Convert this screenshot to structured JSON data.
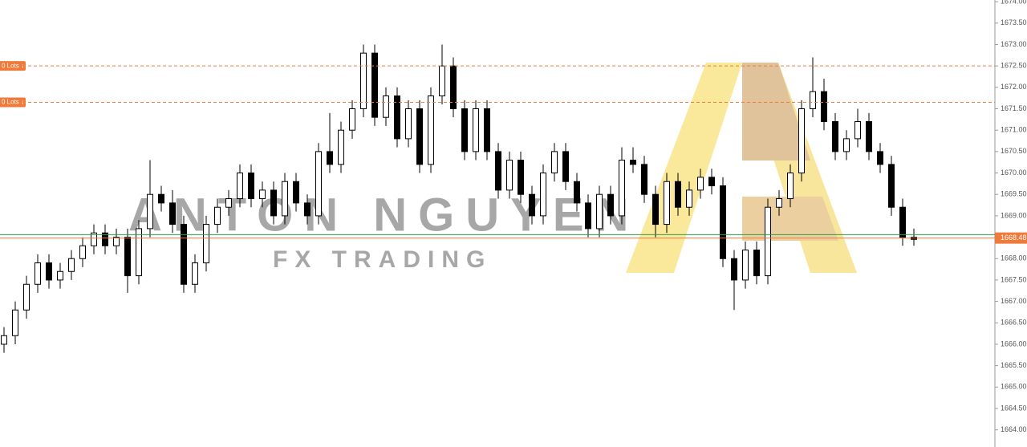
{
  "chart_data": {
    "type": "candlestick",
    "watermark": {
      "title": "ANTON NGUYEN",
      "subtitle": "FX TRADING"
    },
    "ylim": [
      1663.6,
      1674.04
    ],
    "yticks": [
      {
        "value": 1664,
        "label": "1664.00"
      },
      {
        "value": 1664.5,
        "label": "1664.50"
      },
      {
        "value": 1665,
        "label": "1665.00"
      },
      {
        "value": 1665.5,
        "label": "1665.50"
      },
      {
        "value": 1666,
        "label": "1666.00"
      },
      {
        "value": 1666.5,
        "label": "1666.50"
      },
      {
        "value": 1667,
        "label": "1667.00"
      },
      {
        "value": 1667.5,
        "label": "1667.50"
      },
      {
        "value": 1668,
        "label": "1668.00"
      },
      {
        "value": 1668.5,
        "label": "1668.50"
      },
      {
        "value": 1669,
        "label": "1669.00"
      },
      {
        "value": 1669.5,
        "label": "1669.50"
      },
      {
        "value": 1670,
        "label": "1670.00"
      },
      {
        "value": 1670.5,
        "label": "1670.50"
      },
      {
        "value": 1671,
        "label": "1671.00"
      },
      {
        "value": 1671.5,
        "label": "1671.50"
      },
      {
        "value": 1672,
        "label": "1672.00"
      },
      {
        "value": 1672.5,
        "label": "1672.50"
      },
      {
        "value": 1673,
        "label": "1673.00"
      },
      {
        "value": 1673.5,
        "label": "1673.50"
      },
      {
        "value": 1674,
        "label": "1674.00"
      }
    ],
    "up_color": "#ffffff",
    "down_color": "#000000",
    "levels": [
      {
        "value": 1672.5,
        "color": "#f07a3a",
        "dashed": true,
        "label": "0 Lots ↓"
      },
      {
        "value": 1671.65,
        "color": "#f07a3a",
        "dashed": true,
        "label": "0 Lots ↓"
      },
      {
        "value": 1668.56,
        "color": "#2e9e4a",
        "dashed": false
      },
      {
        "value": 1668.48,
        "color": "#f07a3a",
        "dashed": false,
        "label": "1668.48"
      }
    ],
    "ohlc": [
      [
        1666.0,
        1666.4,
        1665.8,
        1666.2
      ],
      [
        1666.2,
        1667.0,
        1666.0,
        1666.8
      ],
      [
        1666.8,
        1667.6,
        1666.6,
        1667.4
      ],
      [
        1667.4,
        1668.1,
        1667.2,
        1667.9
      ],
      [
        1667.9,
        1668.1,
        1667.3,
        1667.5
      ],
      [
        1667.5,
        1667.9,
        1667.3,
        1667.7
      ],
      [
        1667.7,
        1668.2,
        1667.5,
        1668.0
      ],
      [
        1668.0,
        1668.5,
        1667.8,
        1668.3
      ],
      [
        1668.3,
        1668.8,
        1668.1,
        1668.6
      ],
      [
        1668.6,
        1668.8,
        1668.1,
        1668.3
      ],
      [
        1668.3,
        1668.7,
        1668.1,
        1668.5
      ],
      [
        1668.5,
        1668.7,
        1667.2,
        1667.6
      ],
      [
        1667.6,
        1668.9,
        1667.4,
        1668.7
      ],
      [
        1668.7,
        1670.3,
        1668.5,
        1669.5
      ],
      [
        1669.5,
        1669.7,
        1669.1,
        1669.3
      ],
      [
        1669.3,
        1669.6,
        1668.6,
        1668.8
      ],
      [
        1668.8,
        1669.0,
        1667.2,
        1667.4
      ],
      [
        1667.4,
        1668.1,
        1667.2,
        1667.9
      ],
      [
        1667.9,
        1669.0,
        1667.7,
        1668.8
      ],
      [
        1668.8,
        1669.4,
        1668.6,
        1669.2
      ],
      [
        1669.2,
        1669.6,
        1669.0,
        1669.4
      ],
      [
        1669.4,
        1670.2,
        1669.2,
        1670.0
      ],
      [
        1670.0,
        1670.2,
        1669.2,
        1669.4
      ],
      [
        1669.4,
        1669.8,
        1669.2,
        1669.6
      ],
      [
        1669.6,
        1669.8,
        1668.8,
        1669.0
      ],
      [
        1669.0,
        1670.0,
        1668.8,
        1669.8
      ],
      [
        1669.8,
        1670.0,
        1669.1,
        1669.3
      ],
      [
        1669.3,
        1669.5,
        1668.8,
        1669.0
      ],
      [
        1669.0,
        1670.7,
        1668.8,
        1670.5
      ],
      [
        1670.5,
        1671.4,
        1670.0,
        1670.2
      ],
      [
        1670.2,
        1671.2,
        1670.0,
        1671.0
      ],
      [
        1671.0,
        1671.7,
        1670.8,
        1671.5
      ],
      [
        1671.5,
        1673.0,
        1671.3,
        1672.8
      ],
      [
        1672.8,
        1673.0,
        1671.1,
        1671.3
      ],
      [
        1671.3,
        1672.0,
        1671.1,
        1671.8
      ],
      [
        1671.8,
        1672.0,
        1670.6,
        1670.8
      ],
      [
        1670.8,
        1671.7,
        1670.6,
        1671.5
      ],
      [
        1671.5,
        1671.7,
        1670.0,
        1670.2
      ],
      [
        1670.2,
        1672.0,
        1670.0,
        1671.8
      ],
      [
        1671.8,
        1673.0,
        1671.6,
        1672.5
      ],
      [
        1672.5,
        1672.7,
        1671.3,
        1671.5
      ],
      [
        1671.5,
        1671.7,
        1670.3,
        1670.5
      ],
      [
        1670.5,
        1671.7,
        1670.3,
        1671.5
      ],
      [
        1671.5,
        1671.7,
        1670.3,
        1670.5
      ],
      [
        1670.5,
        1670.7,
        1669.4,
        1669.6
      ],
      [
        1669.6,
        1670.5,
        1669.4,
        1670.3
      ],
      [
        1670.3,
        1670.5,
        1669.3,
        1669.5
      ],
      [
        1669.5,
        1669.7,
        1668.8,
        1669.0
      ],
      [
        1669.0,
        1670.2,
        1668.8,
        1670.0
      ],
      [
        1670.0,
        1670.7,
        1669.8,
        1670.5
      ],
      [
        1670.5,
        1670.7,
        1669.6,
        1669.8
      ],
      [
        1669.8,
        1670.0,
        1669.1,
        1669.3
      ],
      [
        1669.3,
        1669.5,
        1668.5,
        1668.7
      ],
      [
        1668.7,
        1669.7,
        1668.5,
        1669.5
      ],
      [
        1669.5,
        1669.7,
        1668.8,
        1669.0
      ],
      [
        1669.0,
        1670.6,
        1668.8,
        1670.3
      ],
      [
        1670.3,
        1670.6,
        1670.0,
        1670.2
      ],
      [
        1670.2,
        1670.4,
        1669.3,
        1669.5
      ],
      [
        1669.5,
        1669.7,
        1668.5,
        1668.8
      ],
      [
        1668.8,
        1670.0,
        1668.6,
        1669.8
      ],
      [
        1669.8,
        1670.0,
        1669.0,
        1669.2
      ],
      [
        1669.2,
        1669.8,
        1669.0,
        1669.6
      ],
      [
        1669.6,
        1670.1,
        1669.4,
        1669.9
      ],
      [
        1669.9,
        1670.1,
        1669.5,
        1669.7
      ],
      [
        1669.7,
        1669.9,
        1667.8,
        1668.0
      ],
      [
        1668.0,
        1668.2,
        1666.8,
        1667.5
      ],
      [
        1667.5,
        1668.4,
        1667.3,
        1668.2
      ],
      [
        1668.2,
        1668.4,
        1667.4,
        1667.6
      ],
      [
        1667.6,
        1669.4,
        1667.4,
        1669.2
      ],
      [
        1669.2,
        1669.6,
        1669.0,
        1669.4
      ],
      [
        1669.4,
        1670.2,
        1669.2,
        1670.0
      ],
      [
        1670.0,
        1671.7,
        1669.8,
        1671.5
      ],
      [
        1671.5,
        1672.7,
        1671.3,
        1671.9
      ],
      [
        1671.9,
        1672.2,
        1671.0,
        1671.2
      ],
      [
        1671.2,
        1671.4,
        1670.3,
        1670.5
      ],
      [
        1670.5,
        1671.0,
        1670.3,
        1670.8
      ],
      [
        1670.8,
        1671.5,
        1670.6,
        1671.2
      ],
      [
        1671.2,
        1671.4,
        1670.3,
        1670.5
      ],
      [
        1670.5,
        1670.7,
        1670.0,
        1670.2
      ],
      [
        1670.2,
        1670.4,
        1669.0,
        1669.2
      ],
      [
        1669.2,
        1669.4,
        1668.3,
        1668.5
      ],
      [
        1668.5,
        1668.7,
        1668.3,
        1668.45
      ]
    ]
  }
}
